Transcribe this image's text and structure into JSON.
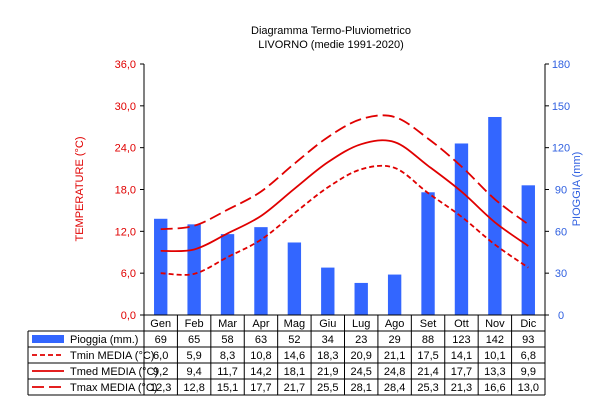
{
  "chart_data": {
    "type": "bar+line",
    "title": "Diagramma Termo-Pluviometrico",
    "subtitle": "LIVORNO (medie 1991-2020)",
    "categories": [
      "Gen",
      "Feb",
      "Mar",
      "Apr",
      "Mag",
      "Giu",
      "Lug",
      "Ago",
      "Set",
      "Ott",
      "Nov",
      "Dic"
    ],
    "ylabel_left": "TEMPERATURE (°C)",
    "ylabel_right": "PIOGGIA (mm)",
    "ylim_left": [
      0,
      36
    ],
    "ylim_right": [
      0,
      180
    ],
    "yticks_left": [
      "0,0",
      "6,0",
      "12,0",
      "18,0",
      "24,0",
      "30,0",
      "36,0"
    ],
    "yticks_right": [
      "0",
      "30",
      "60",
      "90",
      "120",
      "150",
      "180"
    ],
    "grid": false,
    "legend": "table-below",
    "bars": {
      "name": "Pioggia (mm.)",
      "color": "#3366ff",
      "values": [
        69,
        65,
        58,
        63,
        52,
        34,
        23,
        29,
        88,
        123,
        142,
        93
      ],
      "labels": [
        "69",
        "65",
        "58",
        "63",
        "52",
        "34",
        "23",
        "29",
        "88",
        "123",
        "142",
        "93"
      ]
    },
    "series": [
      {
        "name": "Tmin MEDIA (°C)",
        "color": "#e00000",
        "style": "dashed-short",
        "values": [
          6.0,
          5.9,
          8.3,
          10.8,
          14.6,
          18.3,
          20.9,
          21.1,
          17.5,
          14.1,
          10.1,
          6.8
        ],
        "labels": [
          "6,0",
          "5,9",
          "8,3",
          "10,8",
          "14,6",
          "18,3",
          "20,9",
          "21,1",
          "17,5",
          "14,1",
          "10,1",
          "6,8"
        ]
      },
      {
        "name": "Tmed MEDIA (°C)",
        "color": "#e00000",
        "style": "solid",
        "values": [
          9.2,
          9.4,
          11.7,
          14.2,
          18.1,
          21.9,
          24.5,
          24.8,
          21.4,
          17.7,
          13.3,
          9.9
        ],
        "labels": [
          "9,2",
          "9,4",
          "11,7",
          "14,2",
          "18,1",
          "21,9",
          "24,5",
          "24,8",
          "21,4",
          "17,7",
          "13,3",
          "9,9"
        ]
      },
      {
        "name": "Tmax MEDIA (°C)",
        "color": "#e00000",
        "style": "dashed-long",
        "values": [
          12.3,
          12.8,
          15.1,
          17.7,
          21.7,
          25.5,
          28.1,
          28.4,
          25.3,
          21.3,
          16.6,
          13.0
        ],
        "labels": [
          "12,3",
          "12,8",
          "15,1",
          "17,7",
          "21,7",
          "25,5",
          "28,1",
          "28,4",
          "25,3",
          "21,3",
          "16,6",
          "13,0"
        ]
      }
    ]
  }
}
